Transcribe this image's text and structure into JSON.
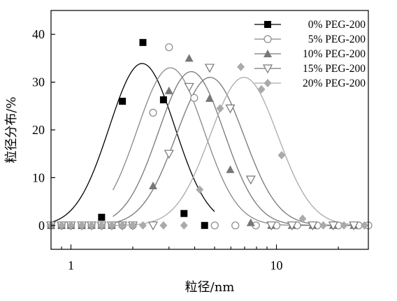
{
  "chart_data": {
    "type": "scatter",
    "xlabel": "粒径/nm",
    "ylabel": "粒径分布/%",
    "xscale": "log",
    "xlim": [
      0.8,
      28
    ],
    "ylim": [
      -5,
      45
    ],
    "x_ticks": [
      1,
      10
    ],
    "y_ticks": [
      0,
      10,
      20,
      30,
      40
    ],
    "grid": false,
    "legend_position": "top-right",
    "series": [
      {
        "name": "0% PEG-200",
        "marker": "square-filled",
        "color": "#000000",
        "points": [
          [
            0.8,
            0
          ],
          [
            0.9,
            0
          ],
          [
            1.0,
            0
          ],
          [
            1.13,
            0
          ],
          [
            1.41,
            1.7
          ],
          [
            1.78,
            26.0
          ],
          [
            2.24,
            38.3
          ],
          [
            2.82,
            26.3
          ],
          [
            3.55,
            2.5
          ],
          [
            4.47,
            0
          ]
        ],
        "fit": {
          "peak": 34.0,
          "center": 2.22,
          "sigma": 0.16,
          "floor": -0.1,
          "xmin": 0.8,
          "xmax": 5.0
        }
      },
      {
        "name": "5% PEG-200",
        "marker": "circle-open",
        "color": "#888888",
        "points": [
          [
            0.8,
            0
          ],
          [
            0.9,
            0
          ],
          [
            1.0,
            0
          ],
          [
            1.13,
            0
          ],
          [
            1.26,
            0
          ],
          [
            1.41,
            0
          ],
          [
            1.58,
            0
          ],
          [
            1.78,
            0
          ],
          [
            2.0,
            0
          ],
          [
            2.51,
            23.6
          ],
          [
            3.0,
            37.3
          ],
          [
            3.98,
            26.7
          ],
          [
            5.01,
            0
          ],
          [
            6.31,
            0
          ],
          [
            7.94,
            0
          ],
          [
            10.0,
            0
          ],
          [
            12.6,
            0
          ],
          [
            15.8,
            0
          ],
          [
            20.0,
            0
          ],
          [
            25.1,
            0
          ],
          [
            28.0,
            0
          ]
        ],
        "fit": {
          "peak": 33.0,
          "center": 3.05,
          "sigma": 0.162,
          "floor": 0,
          "xmin": 1.6,
          "xmax": 28
        }
      },
      {
        "name": "10% PEG-200",
        "marker": "triangle-filled",
        "color": "#777777",
        "points": [
          [
            0.8,
            0
          ],
          [
            0.9,
            0
          ],
          [
            1.0,
            0
          ],
          [
            1.13,
            0
          ],
          [
            1.26,
            0
          ],
          [
            1.41,
            0
          ],
          [
            1.58,
            0
          ],
          [
            2.51,
            8.3
          ],
          [
            3.0,
            28.2
          ],
          [
            3.76,
            35.0
          ],
          [
            4.73,
            26.6
          ],
          [
            5.96,
            11.7
          ],
          [
            7.5,
            0.6
          ],
          [
            9.44,
            0
          ],
          [
            11.9,
            0
          ],
          [
            15.0,
            0
          ],
          [
            18.9,
            0
          ],
          [
            23.8,
            0
          ]
        ],
        "fit": {
          "peak": 32.2,
          "center": 3.85,
          "sigma": 0.16,
          "floor": 0,
          "xmin": 1.6,
          "xmax": 28
        }
      },
      {
        "name": "15% PEG-200",
        "marker": "triangle-down-open",
        "color": "#777777",
        "points": [
          [
            0.8,
            0
          ],
          [
            0.9,
            0
          ],
          [
            1.0,
            0
          ],
          [
            1.13,
            0
          ],
          [
            1.26,
            0
          ],
          [
            1.41,
            0
          ],
          [
            1.58,
            0
          ],
          [
            1.78,
            0
          ],
          [
            2.0,
            0
          ],
          [
            2.51,
            0
          ],
          [
            3.0,
            15.0
          ],
          [
            3.76,
            29.0
          ],
          [
            4.73,
            33.0
          ],
          [
            5.96,
            24.5
          ],
          [
            7.5,
            9.6
          ],
          [
            9.44,
            0
          ],
          [
            11.9,
            0
          ],
          [
            15.0,
            0
          ],
          [
            18.9,
            0
          ],
          [
            23.8,
            0
          ]
        ],
        "fit": {
          "peak": 31.0,
          "center": 4.75,
          "sigma": 0.165,
          "floor": 0,
          "xmin": 1.6,
          "xmax": 28
        }
      },
      {
        "name": "20% PEG-200",
        "marker": "diamond-filled",
        "color": "#aaaaaa",
        "points": [
          [
            0.8,
            0
          ],
          [
            0.9,
            0
          ],
          [
            1.0,
            0
          ],
          [
            1.13,
            0
          ],
          [
            1.26,
            0
          ],
          [
            1.41,
            0
          ],
          [
            1.58,
            0
          ],
          [
            1.78,
            0
          ],
          [
            2.0,
            0
          ],
          [
            2.24,
            0
          ],
          [
            2.82,
            0
          ],
          [
            3.55,
            0
          ],
          [
            4.23,
            7.5
          ],
          [
            5.32,
            24.5
          ],
          [
            6.71,
            33.2
          ],
          [
            8.45,
            28.5
          ],
          [
            10.6,
            14.7
          ],
          [
            13.4,
            1.4
          ],
          [
            16.9,
            0
          ],
          [
            21.3,
            0
          ],
          [
            26.8,
            0
          ]
        ],
        "fit": {
          "peak": 31.0,
          "center": 6.95,
          "sigma": 0.165,
          "floor": 0,
          "xmin": 1.6,
          "xmax": 28
        }
      }
    ]
  }
}
